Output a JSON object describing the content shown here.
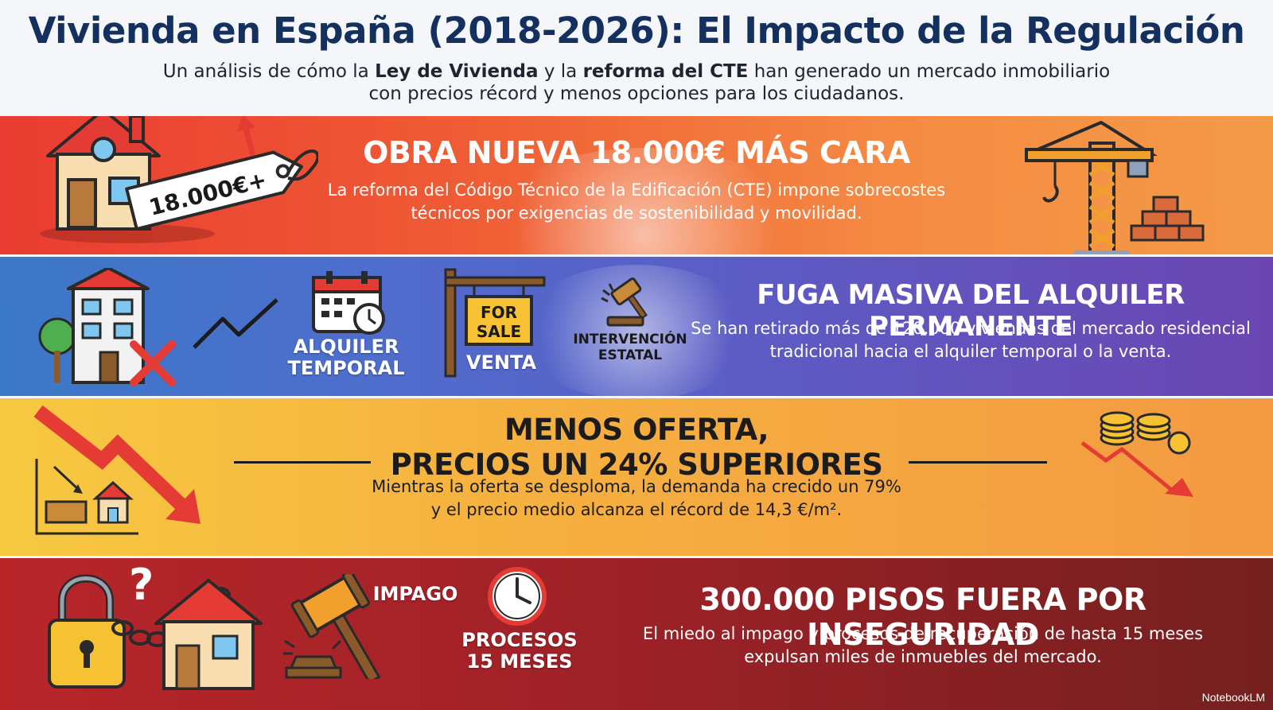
{
  "header": {
    "title": "Vivienda en España (2018-2026): El Impacto de la Regulación",
    "subtitle_parts": [
      "Un análisis de cómo la ",
      "Ley de Vivienda",
      " y la ",
      "reforma del CTE",
      " han generado un mercado inmobiliario",
      "con precios récord y menos opciones para los ciudadanos."
    ]
  },
  "sections": [
    {
      "heading": "OBRA NUEVA 18.000€ MÁS CARA",
      "body": "La reforma del Código Técnico de la Edificación (CTE) impone sobrecostes técnicos por exigencias de sostenibilidad y movilidad.",
      "price_tag": "18.000€+",
      "icons": [
        "house-price-tag-icon",
        "crane-icon",
        "bricks-icon"
      ],
      "color": "#e93c32"
    },
    {
      "heading": "FUGA MASIVA DEL ALQUILER PERMANENTE",
      "body": "Se han retirado más de 120.000 viviendas del mercado residencial tradicional hacia el alquiler temporal o la venta.",
      "labels": {
        "temporary_rental": "ALQUILER TEMPORAL",
        "sale": "VENTA",
        "for_sale_sign": "FOR SALE",
        "intervention": "INTERVENCIÓN ESTATAL"
      },
      "icons": [
        "building-crossed-icon",
        "trend-line-icon",
        "calendar-clock-icon",
        "for-sale-sign-icon",
        "gavel-icon"
      ],
      "color": "#5d5bc4"
    },
    {
      "heading": "MENOS OFERTA, PRECIOS UN 24% SUPERIORES",
      "heading_lines": [
        "MENOS OFERTA,",
        "PRECIOS UN 24% SUPERIORES"
      ],
      "body": "Mientras la oferta se desploma, la demanda ha crecido un 79% y el precio medio alcanza el récord de 14,3 €/m².",
      "icons": [
        "falling-arrow-chart-icon",
        "coins-falling-icon"
      ],
      "color": "#f6b13f"
    },
    {
      "heading": "300.000 PISOS FUERA POR INSEGURIDAD",
      "body": "El miedo al impago y procesos de recuperación de hasta 15 meses expulsan miles de inmuebles del mercado.",
      "labels": {
        "nonpayment": "IMPAGO",
        "process": "PROCESOS 15 MESES"
      },
      "icons": [
        "padlock-chain-house-icon",
        "question-mark-icon",
        "gavel-icon",
        "clock-icon"
      ],
      "color": "#9c2127"
    }
  ],
  "brand": "NotebookLM"
}
